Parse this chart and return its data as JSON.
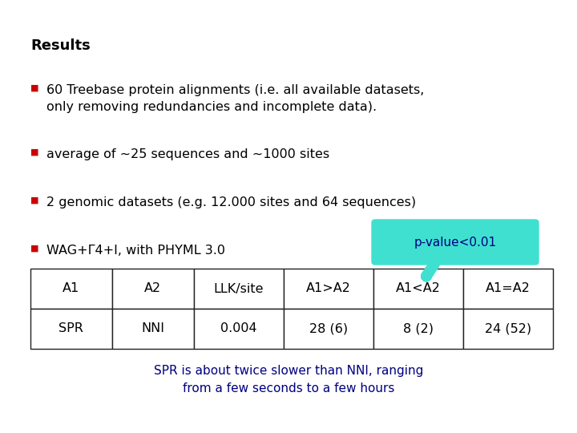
{
  "title": "Results",
  "bullet_color": "#cc0000",
  "bullet_char": "■",
  "bullets": [
    "60 Treebase protein alignments (i.e. all available datasets,\nonly removing redundancies and incomplete data).",
    "average of ~25 sequences and ~1000 sites",
    "2 genomic datasets (e.g. 12.000 sites and 64 sequences)",
    "WAG+Γ4+I, with PHYML 3.0"
  ],
  "table_headers": [
    "A1",
    "A2",
    "LLK/site",
    "A1>A2",
    "A1<A2",
    "A1=A2"
  ],
  "table_row": [
    "SPR",
    "NNI",
    "0.004",
    "28 (6)",
    "8 (2)",
    "24 (52)"
  ],
  "callout_text": "p-value<0.01",
  "callout_bg": "#40e0d0",
  "callout_text_color": "#000080",
  "footer_text": "SPR is about twice slower than NNI, ranging\nfrom a few seconds to a few hours",
  "footer_color": "#000080",
  "bg_color": "#ffffff",
  "text_color": "#000000",
  "title_fontsize": 13,
  "body_fontsize": 11.5,
  "table_fontsize": 11.5,
  "footer_fontsize": 11,
  "callout_fontsize": 11
}
